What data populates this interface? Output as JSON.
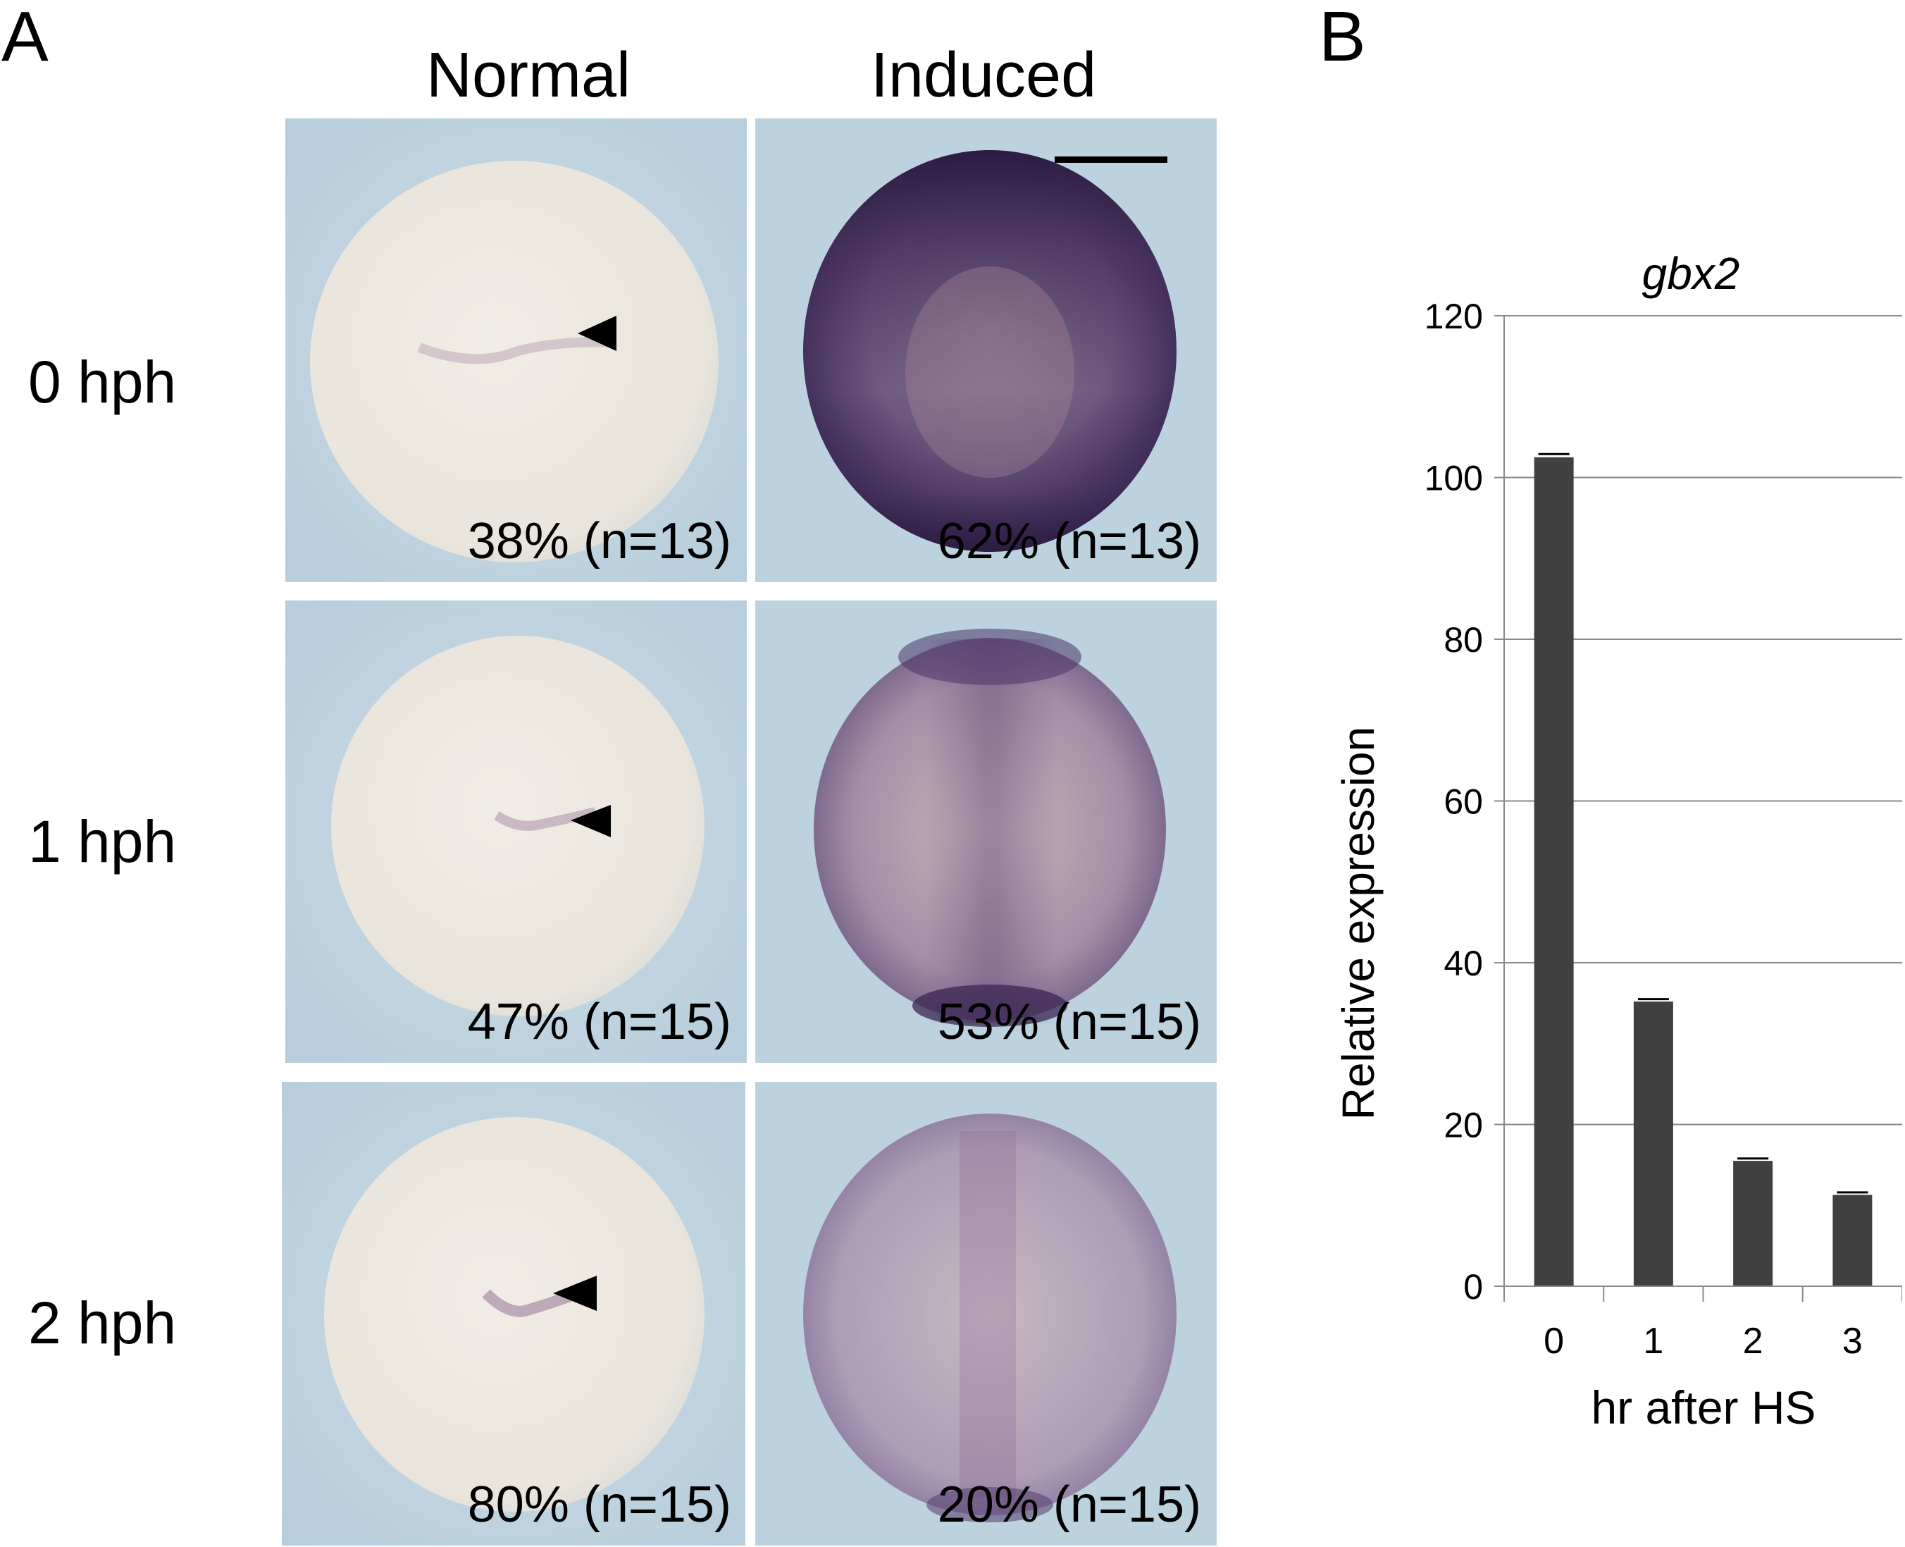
{
  "panel_a": {
    "letter": "A",
    "col_headers": [
      "Normal",
      "Induced"
    ],
    "rows": [
      {
        "label": "0 hph",
        "normal_pct": "38% (n=13)",
        "induced_pct": "62% (n=13)"
      },
      {
        "label": "1 hph",
        "normal_pct": "47% (n=15)",
        "induced_pct": "53% (n=15)"
      },
      {
        "label": "2 hph",
        "normal_pct": "80% (n=15)",
        "induced_pct": "20% (n=15)"
      }
    ],
    "colors": {
      "background": "#bed3e0",
      "embryo_light": "#ede9e1",
      "stain": "#3a2650"
    }
  },
  "panel_b": {
    "letter": "B"
  },
  "chart_data": {
    "type": "bar",
    "title": "gbx2",
    "xlabel": "hr after HS",
    "ylabel": "Relative expression",
    "categories": [
      "0",
      "1",
      "2",
      "3"
    ],
    "values": [
      102.5,
      35.2,
      15.5,
      11.3
    ],
    "error": [
      0.4,
      0.3,
      0.3,
      0.3
    ],
    "ylim": [
      0,
      120
    ],
    "yticks": [
      0,
      20,
      40,
      60,
      80,
      100,
      120
    ],
    "grid": true,
    "bar_color": "#404040"
  }
}
